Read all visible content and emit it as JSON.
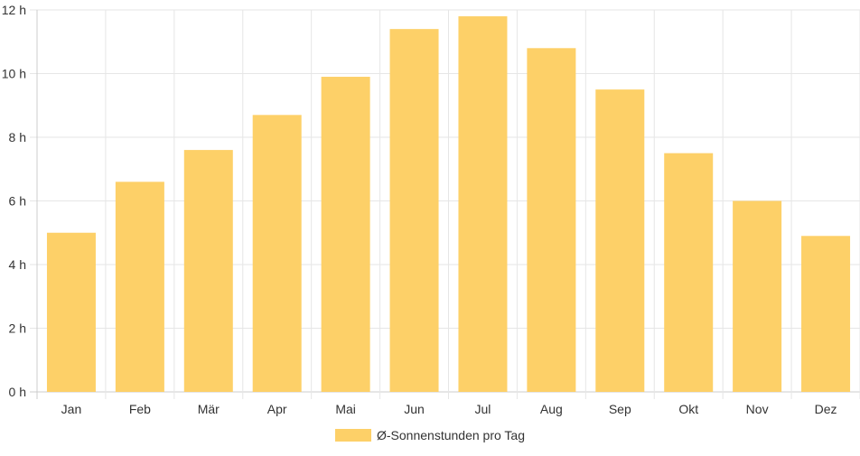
{
  "chart_data": {
    "type": "bar",
    "categories": [
      "Jan",
      "Feb",
      "Mär",
      "Apr",
      "Mai",
      "Jun",
      "Jul",
      "Aug",
      "Sep",
      "Okt",
      "Nov",
      "Dez"
    ],
    "series": [
      {
        "name": "Ø-Sonnenstunden pro Tag",
        "values": [
          5.0,
          6.6,
          7.6,
          8.7,
          9.9,
          11.4,
          11.8,
          10.8,
          9.5,
          7.5,
          6.0,
          4.9
        ],
        "color": "#fdd068"
      }
    ],
    "y_ticks": [
      "0 h",
      "2 h",
      "4 h",
      "6 h",
      "8 h",
      "10 h",
      "12 h"
    ],
    "ylim": [
      0,
      12
    ],
    "grid": true,
    "legend_position": "bottom"
  },
  "colors": {
    "bar": "#fdd068",
    "grid": "#e6e6e6",
    "axis": "#cccccc",
    "text": "#333333"
  }
}
